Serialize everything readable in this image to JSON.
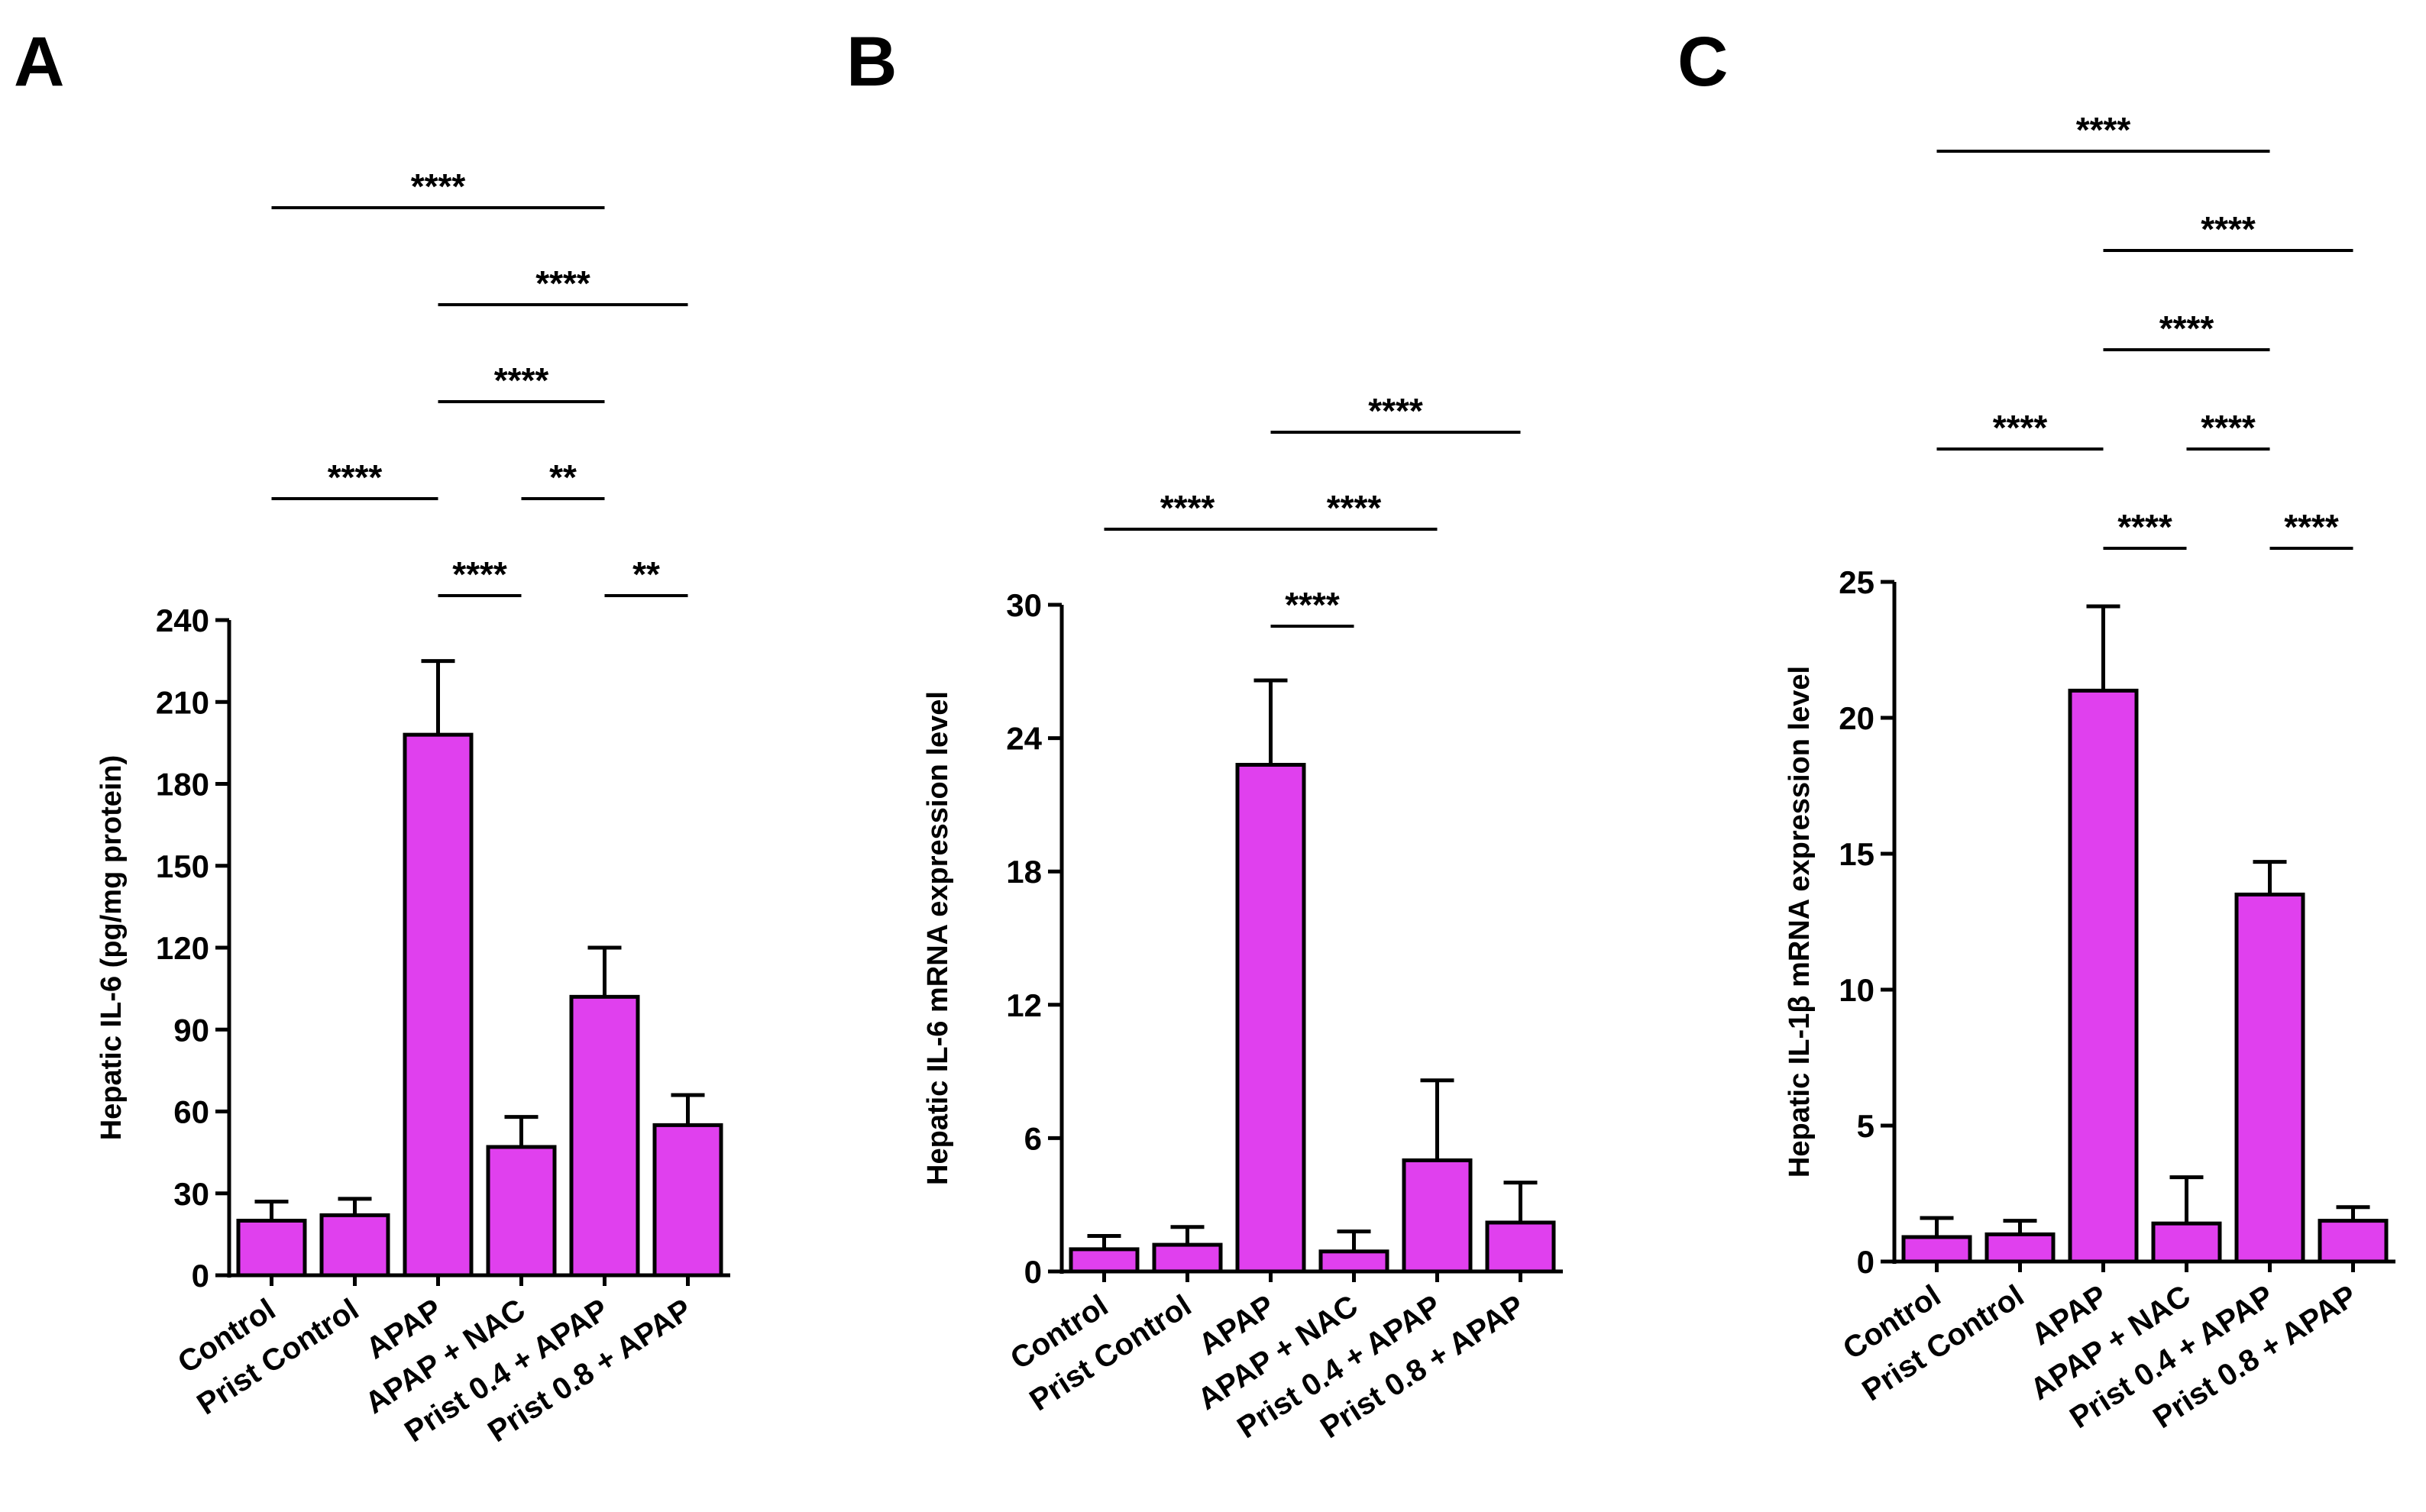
{
  "figure": {
    "bar_color": "#e040ee",
    "bar_stroke": "#000000"
  },
  "chart_data": [
    {
      "type": "bar",
      "panel": "A",
      "ylabel": "Hepatic IL-6 (pg/mg protein)",
      "ylim": [
        0,
        240
      ],
      "yticks": [
        "0",
        "30",
        "60",
        "90",
        "120",
        "150",
        "180",
        "210",
        "240"
      ],
      "categories": [
        "Control",
        "Prist Control",
        "APAP",
        "APAP + NAC",
        "Prist 0.4 + APAP",
        "Prist 0.8 + APAP"
      ],
      "values": [
        20,
        22,
        198,
        47,
        102,
        55
      ],
      "errors": [
        7,
        6,
        27,
        11,
        18,
        11
      ],
      "significance": [
        {
          "from": 2,
          "to": 3,
          "label": "****",
          "level": 1
        },
        {
          "from": 4,
          "to": 5,
          "label": "**",
          "level": 1
        },
        {
          "from": 0,
          "to": 2,
          "label": "****",
          "level": 2
        },
        {
          "from": 3,
          "to": 4,
          "label": "**",
          "level": 2
        },
        {
          "from": 2,
          "to": 4,
          "label": "****",
          "level": 3
        },
        {
          "from": 2,
          "to": 5,
          "label": "****",
          "level": 4
        },
        {
          "from": 0,
          "to": 4,
          "label": "****",
          "level": 5
        }
      ]
    },
    {
      "type": "bar",
      "panel": "B",
      "ylabel": "Hepatic IL-6 mRNA expression level",
      "ylim": [
        0,
        30
      ],
      "yticks": [
        "0",
        "6",
        "12",
        "18",
        "24",
        "30"
      ],
      "categories": [
        "Control",
        "Prist Control",
        "APAP",
        "APAP + NAC",
        "Prist 0.4 + APAP",
        "Prist 0.8 + APAP"
      ],
      "values": [
        1.0,
        1.2,
        22.8,
        0.9,
        5.0,
        2.2
      ],
      "errors": [
        0.6,
        0.8,
        3.8,
        0.9,
        3.6,
        1.8
      ],
      "significance": [
        {
          "from": 2,
          "to": 3,
          "label": "****",
          "level": 1
        },
        {
          "from": 0,
          "to": 2,
          "label": "****",
          "level": 2
        },
        {
          "from": 2,
          "to": 4,
          "label": "****",
          "level": 2
        },
        {
          "from": 2,
          "to": 5,
          "label": "****",
          "level": 3
        }
      ]
    },
    {
      "type": "bar",
      "panel": "C",
      "ylabel": "Hepatic IL-1β mRNA expression level",
      "ylim": [
        0,
        25
      ],
      "yticks": [
        "0",
        "5",
        "10",
        "15",
        "20",
        "25"
      ],
      "categories": [
        "Control",
        "Prist Control",
        "APAP",
        "APAP + NAC",
        "Prist 0.4 + APAP",
        "Prist 0.8 + APAP"
      ],
      "values": [
        0.9,
        1.0,
        21.0,
        1.4,
        13.5,
        1.5
      ],
      "errors": [
        0.7,
        0.5,
        3.1,
        1.7,
        1.2,
        0.5
      ],
      "significance": [
        {
          "from": 2,
          "to": 3,
          "label": "****",
          "level": 1
        },
        {
          "from": 4,
          "to": 5,
          "label": "****",
          "level": 1
        },
        {
          "from": 0,
          "to": 2,
          "label": "****",
          "level": 2
        },
        {
          "from": 3,
          "to": 4,
          "label": "****",
          "level": 2
        },
        {
          "from": 2,
          "to": 4,
          "label": "****",
          "level": 3
        },
        {
          "from": 2,
          "to": 5,
          "label": "****",
          "level": 4
        },
        {
          "from": 0,
          "to": 4,
          "label": "****",
          "level": 5
        }
      ]
    }
  ]
}
